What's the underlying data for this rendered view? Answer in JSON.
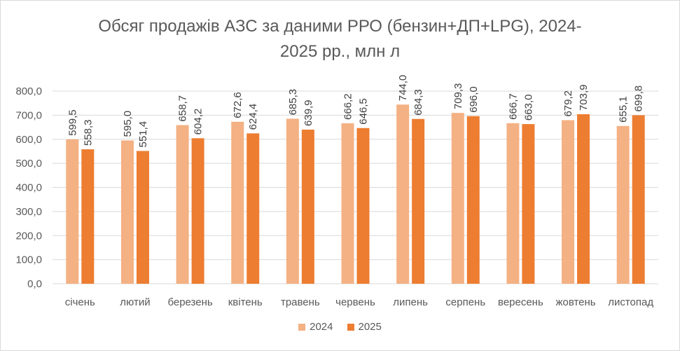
{
  "chart_data": {
    "type": "bar",
    "title_lines": [
      "Обсяг продажів АЗС за даними РРО (бензин+ДП+LPG), 2024-",
      "2025 рр., млн л"
    ],
    "categories": [
      "січень",
      "лютий",
      "березень",
      "квітень",
      "травень",
      "червень",
      "липень",
      "серпень",
      "вересень",
      "жовтень",
      "листопад"
    ],
    "series": [
      {
        "name": "2024",
        "color": "#f4b183",
        "values": [
          599.5,
          595.0,
          658.7,
          672.6,
          685.3,
          666.2,
          744.0,
          709.3,
          666.7,
          679.2,
          655.1
        ],
        "labels": [
          "599,5",
          "595,0",
          "658,7",
          "672,6",
          "685,3",
          "666,2",
          "744,0",
          "709,3",
          "666,7",
          "679,2",
          "655,1"
        ]
      },
      {
        "name": "2025",
        "color": "#ed7d31",
        "values": [
          558.3,
          551.4,
          604.2,
          624.4,
          639.9,
          646.5,
          684.3,
          696.0,
          663.0,
          703.9,
          699.8
        ],
        "labels": [
          "558,3",
          "551,4",
          "604,2",
          "624,4",
          "639,9",
          "646,5",
          "684,3",
          "696,0",
          "663,0",
          "703,9",
          "699,8"
        ]
      }
    ],
    "yticks": [
      0,
      100,
      200,
      300,
      400,
      500,
      600,
      700,
      800
    ],
    "ytick_labels": [
      "0,0",
      "100,0",
      "200,0",
      "300,0",
      "400,0",
      "500,0",
      "600,0",
      "700,0",
      "800,0"
    ],
    "ylim": [
      0,
      800
    ],
    "grid": true,
    "legend_position": "bottom"
  }
}
